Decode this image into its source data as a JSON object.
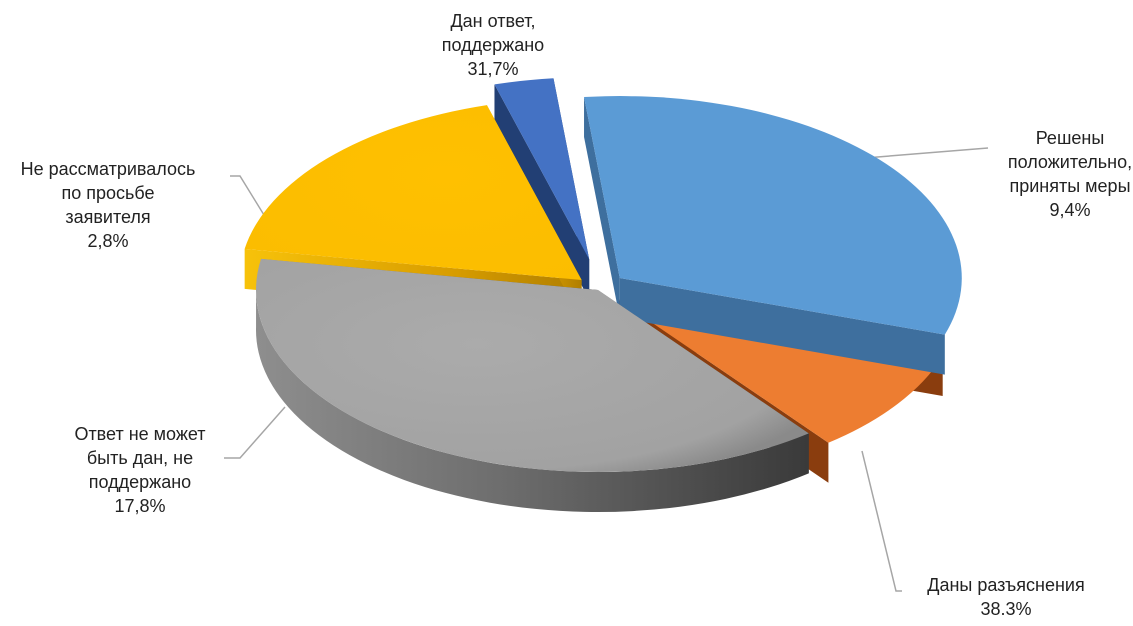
{
  "chart_data": {
    "type": "pie",
    "title": "",
    "slices": [
      {
        "label_lines": [
          "Дан ответ,",
          "поддержано"
        ],
        "value_text": "31,7%",
        "value": 31.7,
        "color": "#5B9BD5"
      },
      {
        "label_lines": [
          "Решены",
          "положительно,",
          "приняты меры"
        ],
        "value_text": "9,4%",
        "value": 9.4,
        "color": "#ED7D31"
      },
      {
        "label_lines": [
          "Даны разъяснения"
        ],
        "value_text": "38.3%",
        "value": 38.3,
        "color": "#A5A5A5"
      },
      {
        "label_lines": [
          "Ответ не может",
          "быть дан, не",
          "поддержано"
        ],
        "value_text": "17,8%",
        "value": 17.8,
        "color": "#FFC000"
      },
      {
        "label_lines": [
          "Не рассматривалось",
          "по просьбе",
          "заявителя"
        ],
        "value_text": "2,8%",
        "value": 2.8,
        "color": "#4472C4"
      }
    ],
    "style": "3d-exploded-pie",
    "legend": "none"
  }
}
